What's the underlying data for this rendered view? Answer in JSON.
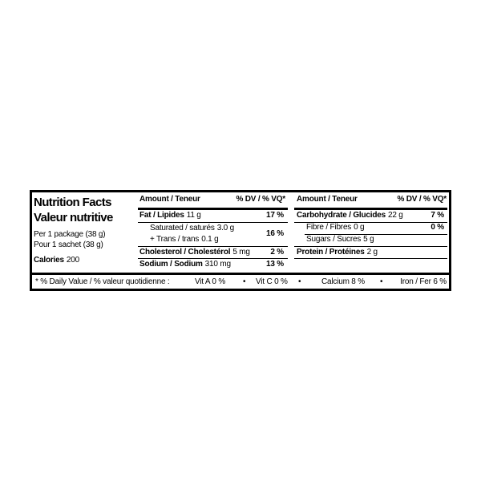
{
  "title": [
    "Nutrition Facts",
    "Valeur nutritive"
  ],
  "serving": [
    "Per 1 package (38 g)",
    "Pour 1 sachet (38 g)"
  ],
  "calories": {
    "label": "Calories",
    "value": "200"
  },
  "table_left": {
    "header": {
      "amount": "Amount / Teneur",
      "dv": "% DV / % VQ*"
    },
    "rows": [
      {
        "name": "Fat / Lipides",
        "amount": "11 g",
        "dv": "17 %"
      },
      {
        "name": "Saturated / saturés",
        "amount": "3.0 g"
      },
      {
        "name": "+ Trans / trans",
        "amount": "0.1 g",
        "dv": "16 %"
      },
      {
        "name": "Cholesterol / Cholestérol",
        "amount": "5 mg",
        "dv": "2 %"
      },
      {
        "name": "Sodium / Sodium",
        "amount": "310 mg",
        "dv": "13 %"
      }
    ]
  },
  "table_right": {
    "header": {
      "amount": "Amount / Teneur",
      "dv": "% DV / % VQ*"
    },
    "rows": [
      {
        "name": "Carbohydrate / Glucides",
        "amount": "22 g",
        "dv": "7 %"
      },
      {
        "name": "Fibre / Fibres",
        "amount": "0 g",
        "dv": "0 %"
      },
      {
        "name": "Sugars / Sucres",
        "amount": "5 g"
      },
      {
        "name": "Protein / Protéines",
        "amount": "2 g"
      }
    ]
  },
  "footer": {
    "note": "* % Daily Value / % valeur quotidienne :",
    "vitamins": [
      "Vit A 0 %",
      "Vit C 0 %",
      "Calcium 8 %",
      "Iron / Fer 6 %"
    ]
  }
}
